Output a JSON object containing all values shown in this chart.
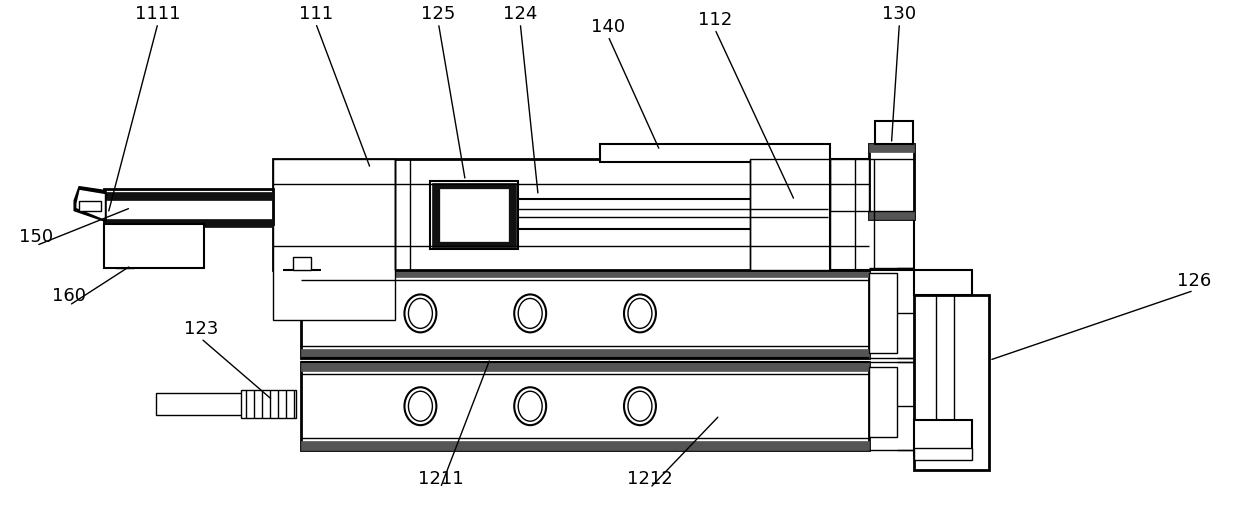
{
  "bg_color": "#ffffff",
  "fig_width": 12.39,
  "fig_height": 5.07,
  "dpi": 100
}
